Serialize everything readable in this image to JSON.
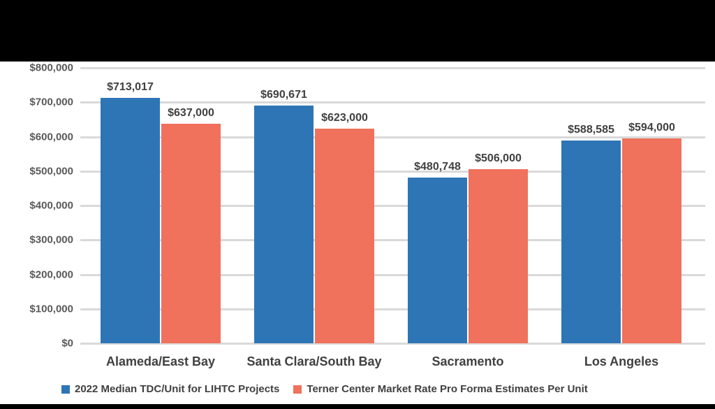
{
  "chart_data": {
    "type": "bar",
    "categories": [
      "Alameda/East Bay",
      "Santa Clara/South Bay",
      "Sacramento",
      "Los Angeles"
    ],
    "series": [
      {
        "name": "2022 Median TDC/Unit for LIHTC Projects",
        "color": "#2E75B6",
        "values": [
          713017,
          690671,
          480748,
          588585
        ],
        "labels": [
          "$713,017",
          "$690,671",
          "$480,748",
          "$588,585"
        ]
      },
      {
        "name": "Terner Center Market Rate Pro Forma Estimates Per Unit",
        "color": "#F0715C",
        "values": [
          637000,
          623000,
          506000,
          594000
        ],
        "labels": [
          "$637,000",
          "$623,000",
          "$506,000",
          "$594,000"
        ]
      }
    ],
    "title": "",
    "xlabel": "",
    "ylabel": "",
    "ylim": [
      0,
      800000
    ],
    "ytick_step": 100000,
    "ytick_labels": [
      "$0",
      "$100,000",
      "$200,000",
      "$300,000",
      "$400,000",
      "$500,000",
      "$600,000",
      "$700,000",
      "$800,000"
    ],
    "grid": true,
    "legend_position": "bottom",
    "colors": {
      "grid_line": "#d9d9d9",
      "axis_label_text": "#595959",
      "data_label_text": "#404040",
      "plot_background": "#ffffff",
      "page_background": "#000000"
    }
  }
}
